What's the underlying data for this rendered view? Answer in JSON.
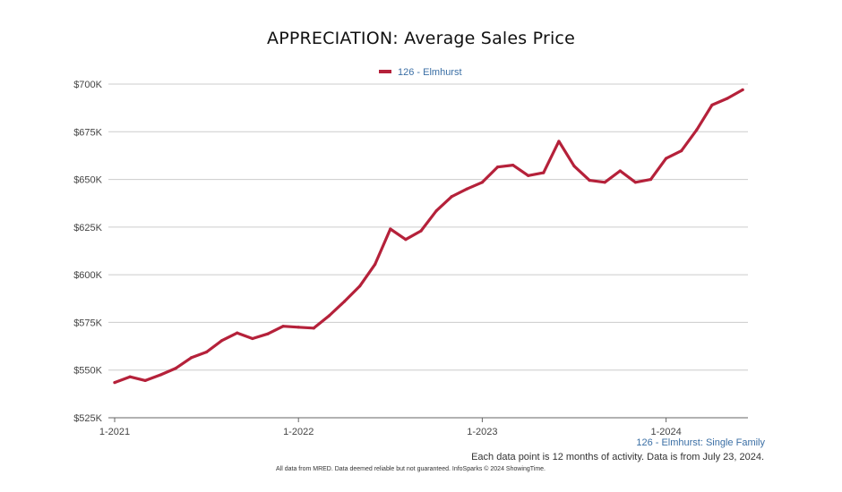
{
  "title": "APPRECIATION: Average Sales Price",
  "series_subtitle": "126 - Elmhurst: Single Family",
  "footnote": "Each data point is 12 months of activity. Data is from July 23, 2024.",
  "disclaimer": "All data from MRED. Data deemed reliable but not guaranteed. InfoSparks © 2024 ShowingTime.",
  "colors": {
    "series": "#b5213a",
    "grid": "#cccccc",
    "axis": "#666666",
    "legend_text": "#3b6fa5"
  },
  "chart_data": {
    "type": "line",
    "title": "APPRECIATION: Average Sales Price",
    "xlabel": "",
    "ylabel": "",
    "ylim": [
      525000,
      700000
    ],
    "y_ticks": [
      {
        "value": 700000,
        "label": "$700K"
      },
      {
        "value": 675000,
        "label": "$675K"
      },
      {
        "value": 650000,
        "label": "$650K"
      },
      {
        "value": 625000,
        "label": "$625K"
      },
      {
        "value": 600000,
        "label": "$600K"
      },
      {
        "value": 575000,
        "label": "$575K"
      },
      {
        "value": 550000,
        "label": "$550K"
      },
      {
        "value": 525000,
        "label": "$525K"
      }
    ],
    "x_ticks": [
      {
        "index": 0,
        "label": "1-2021"
      },
      {
        "index": 12,
        "label": "1-2022"
      },
      {
        "index": 24,
        "label": "1-2023"
      },
      {
        "index": 36,
        "label": "1-2024"
      }
    ],
    "legend": {
      "position": "top-center"
    },
    "grid": true,
    "series": [
      {
        "name": "126 - Elmhurst",
        "months": [
          "1-2021",
          "2-2021",
          "3-2021",
          "4-2021",
          "5-2021",
          "6-2021",
          "7-2021",
          "8-2021",
          "9-2021",
          "10-2021",
          "11-2021",
          "12-2021",
          "1-2022",
          "2-2022",
          "3-2022",
          "4-2022",
          "5-2022",
          "6-2022",
          "7-2022",
          "8-2022",
          "9-2022",
          "10-2022",
          "11-2022",
          "12-2022",
          "1-2023",
          "2-2023",
          "3-2023",
          "4-2023",
          "5-2023",
          "6-2023",
          "7-2023",
          "8-2023",
          "9-2023",
          "10-2023",
          "11-2023",
          "12-2023",
          "1-2024",
          "2-2024",
          "3-2024",
          "4-2024",
          "5-2024",
          "6-2024"
        ],
        "values": [
          543500,
          546500,
          544500,
          547500,
          551000,
          556500,
          559500,
          565500,
          569500,
          566500,
          569000,
          573000,
          572500,
          572000,
          578500,
          586000,
          594000,
          605500,
          624000,
          618500,
          623000,
          633500,
          641000,
          645000,
          648500,
          656500,
          657500,
          652000,
          653500,
          670000,
          657000,
          649500,
          648500,
          654500,
          648500,
          650000,
          661000,
          665000,
          676000,
          689000,
          692500,
          697000
        ]
      }
    ]
  }
}
